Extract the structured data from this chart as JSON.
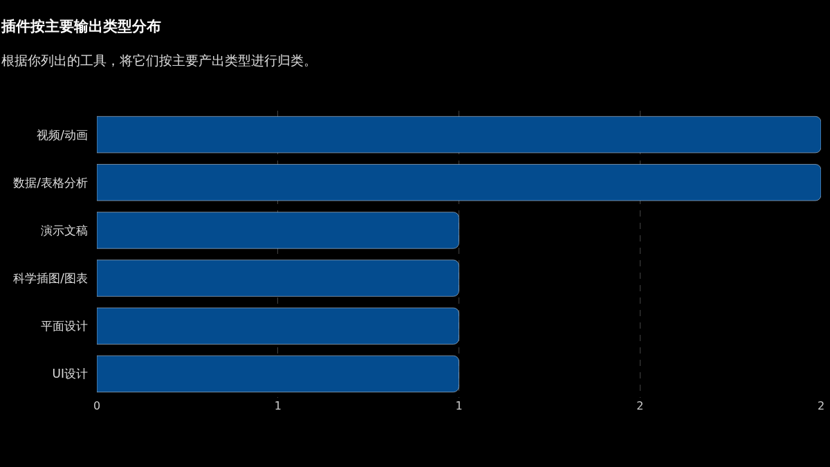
{
  "chart_data": {
    "type": "bar",
    "orientation": "horizontal",
    "title": "插件按主要输出类型分布",
    "subtitle": "根据你列出的工具，将它们按主要产出类型进行归类。",
    "categories": [
      "视频/动画",
      "数据/表格分析",
      "演示文稿",
      "科学插图/图表",
      "平面设计",
      "UI设计"
    ],
    "values": [
      2,
      2,
      1,
      1,
      1,
      1
    ],
    "color": "#044c8f",
    "xlim": [
      0,
      2
    ],
    "xticks": [
      0,
      {
        "value": 0.5,
        "label": "1"
      },
      1,
      {
        "value": 1.5,
        "label": "2"
      },
      2
    ],
    "grid": "x",
    "legend": false
  }
}
